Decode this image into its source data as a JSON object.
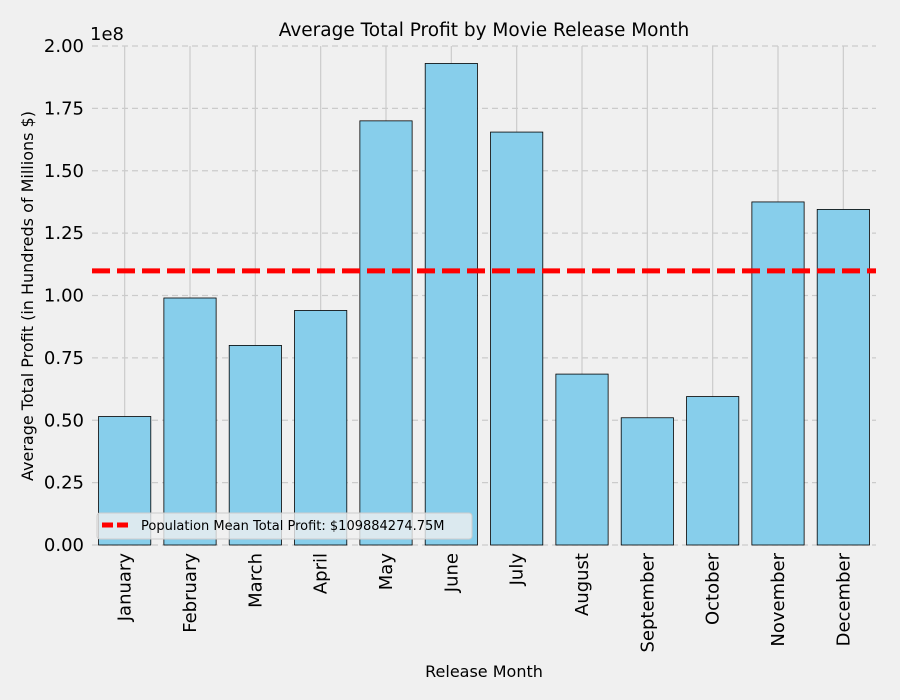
{
  "chart_data": {
    "type": "bar",
    "title": "Average Total Profit by Movie Release Month",
    "xlabel": "Release Month",
    "ylabel": "Average Total Profit (in Hundreds of Millions $)",
    "y_offset_text": "1e8",
    "categories": [
      "January",
      "February",
      "March",
      "April",
      "May",
      "June",
      "July",
      "August",
      "September",
      "October",
      "November",
      "December"
    ],
    "values": [
      51500000,
      99000000,
      80000000,
      94000000,
      170000000,
      193000000,
      165500000,
      68500000,
      51000000,
      59500000,
      137500000,
      134500000
    ],
    "ylim": [
      0,
      200000000
    ],
    "yticks": [
      0,
      25000000,
      50000000,
      75000000,
      100000000,
      125000000,
      150000000,
      175000000,
      200000000
    ],
    "ytick_labels": [
      "0.00",
      "0.25",
      "0.50",
      "0.75",
      "1.00",
      "1.25",
      "1.50",
      "1.75",
      "2.00"
    ],
    "mean_line": {
      "value": 109884274.75,
      "label": "Population Mean Total Profit: $109884274.75M",
      "color": "#ff0000",
      "style": "dashed"
    },
    "bar_color": "#87ceeb",
    "bar_edge_color": "#000000",
    "grid": true,
    "legend_position": "lower-left"
  }
}
